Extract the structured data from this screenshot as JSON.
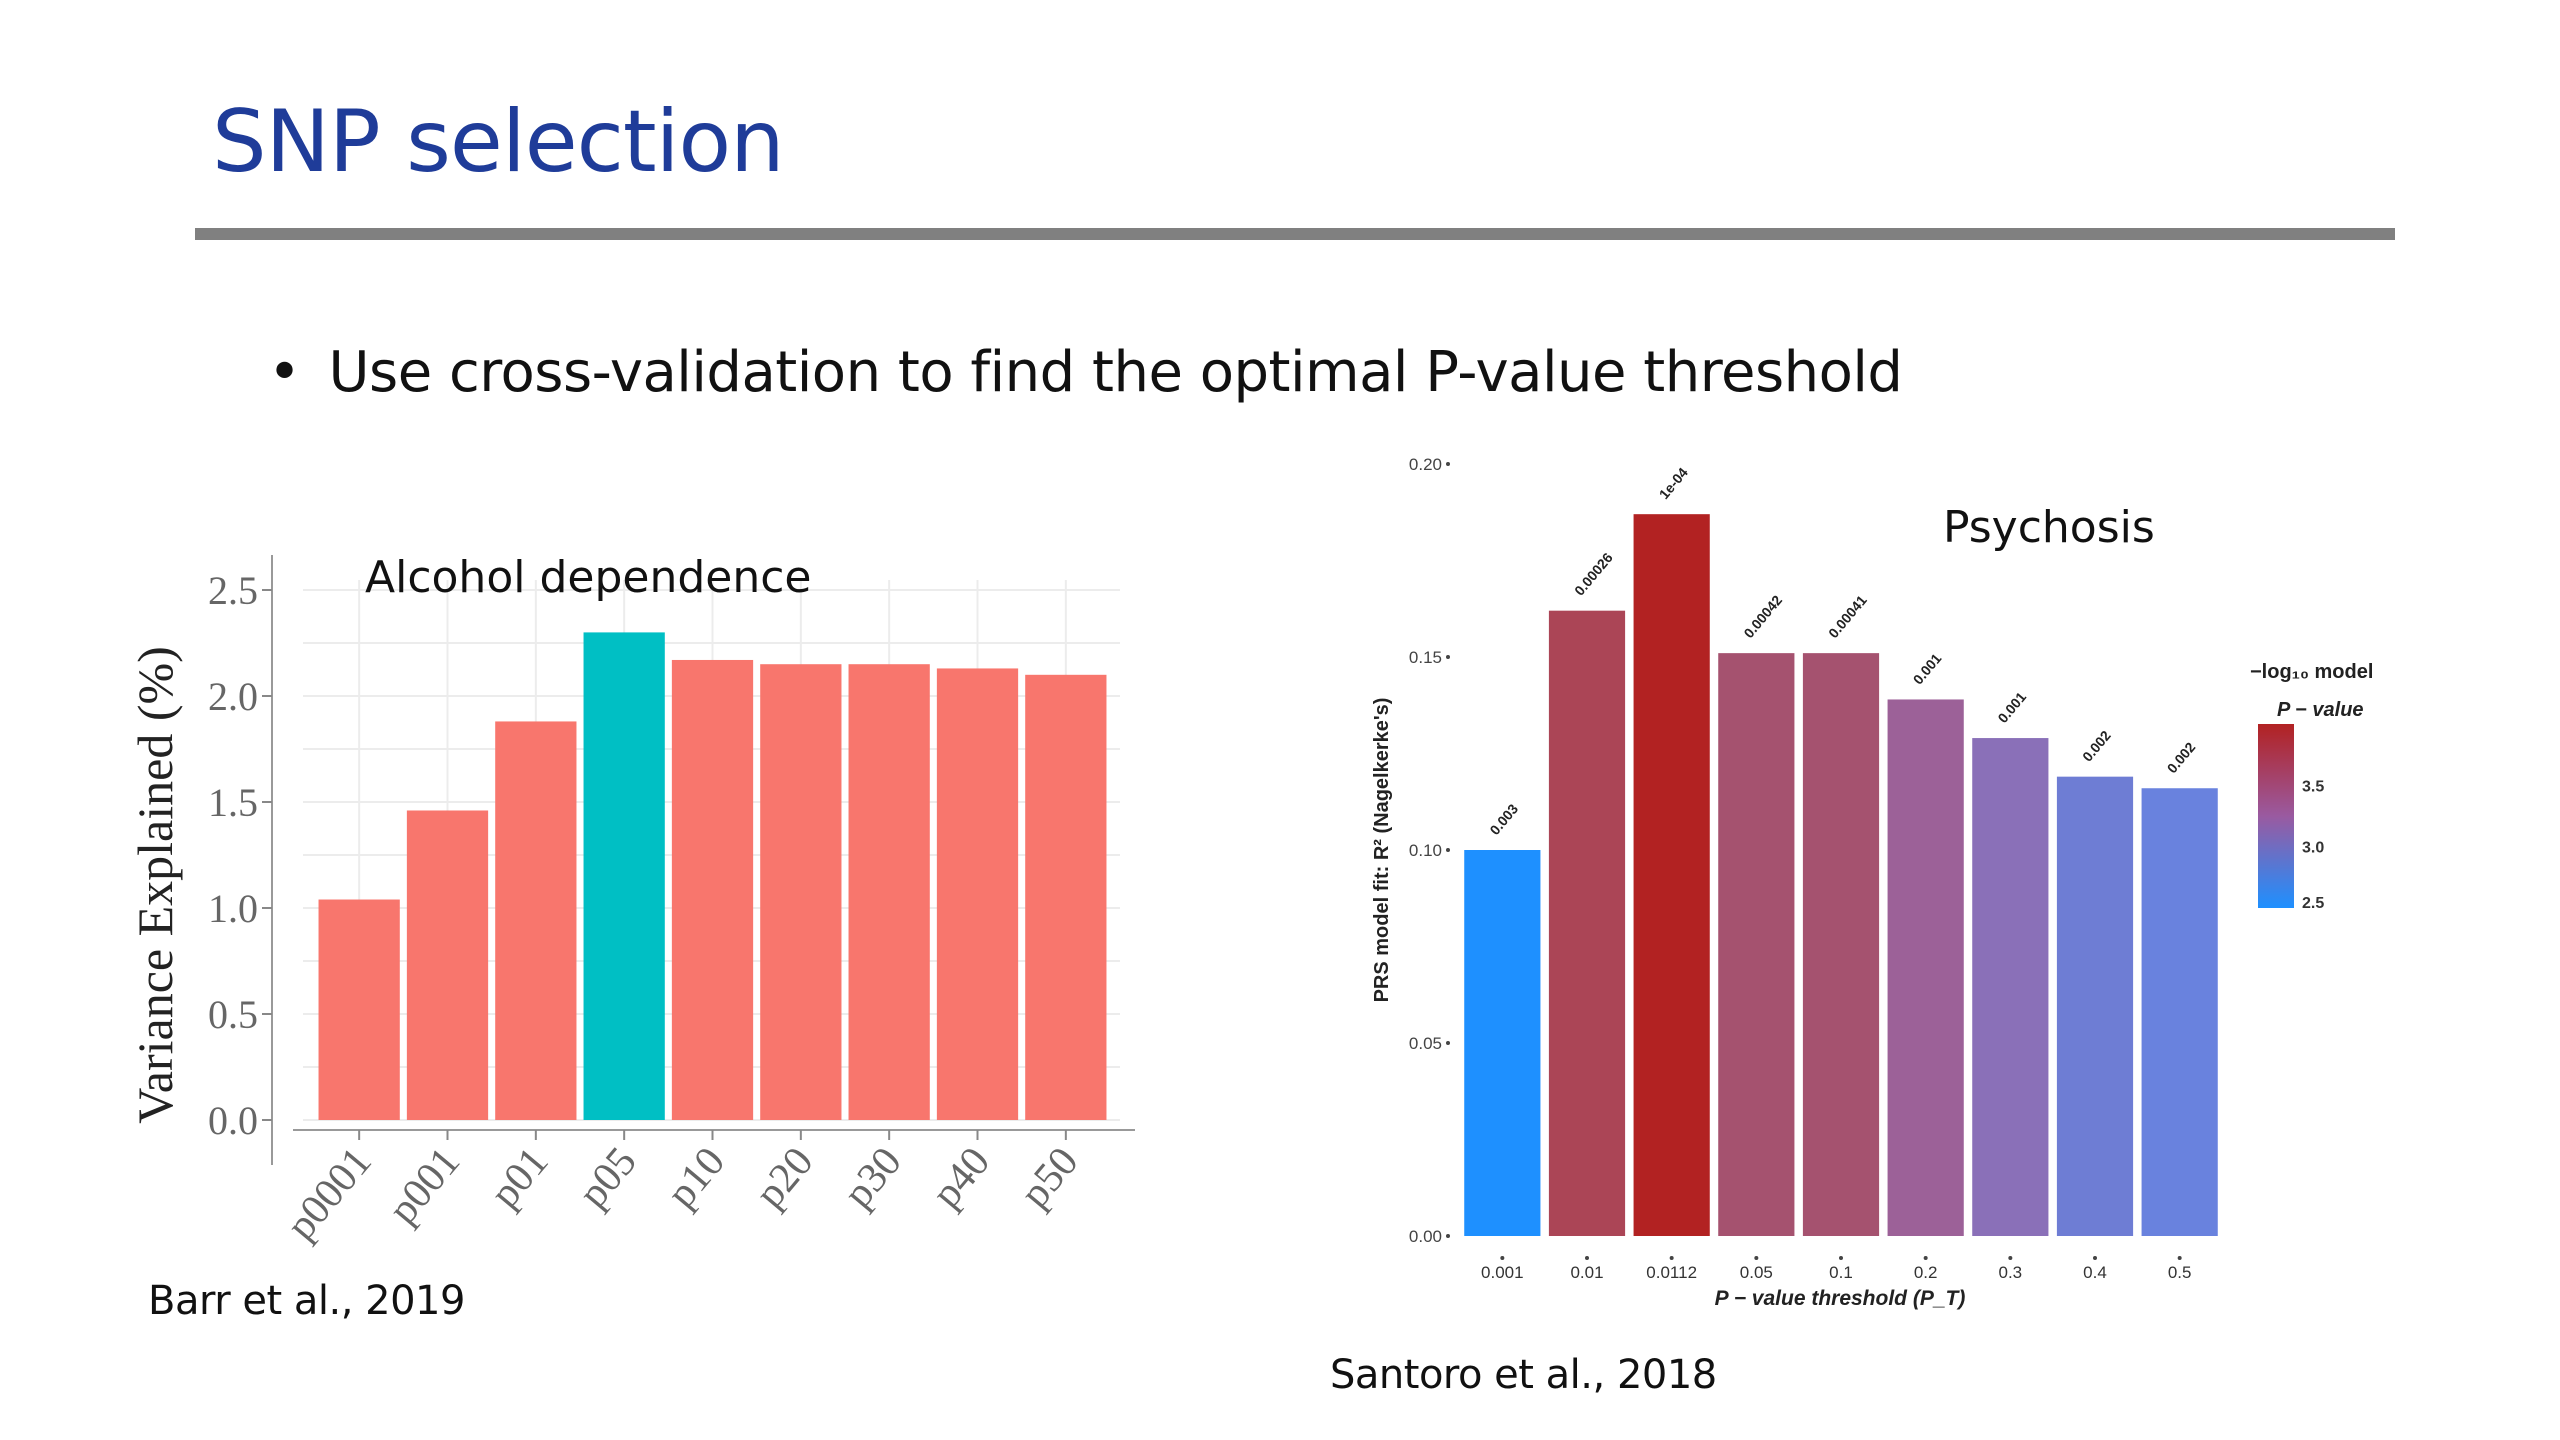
{
  "slide": {
    "title": "SNP selection",
    "bullet": "Use cross-validation to find the optimal P-value threshold",
    "bullet_marker": "•",
    "citations": {
      "left": "Barr et al., 2019",
      "right": "Santoro et al., 2018"
    },
    "colors": {
      "title": "#1f3c99",
      "divider": "#808080"
    }
  },
  "chart_data": [
    {
      "type": "bar",
      "title": "Alcohol dependence",
      "xlabel": "",
      "ylabel": "Variance Explained (%)",
      "categories": [
        "p0001",
        "p001",
        "p01",
        "p05",
        "p10",
        "p20",
        "p30",
        "p40",
        "p50"
      ],
      "values": [
        1.04,
        1.46,
        1.88,
        2.3,
        2.17,
        2.15,
        2.15,
        2.13,
        2.1
      ],
      "highlight_index": 3,
      "colors": {
        "default": "#f8766d",
        "highlight": "#00bfc4"
      },
      "ylim": [
        0,
        2.5
      ],
      "yticks": [
        "0.0",
        "0.5",
        "1.0",
        "1.5",
        "2.0",
        "2.5"
      ],
      "grid": true,
      "legend": "none"
    },
    {
      "type": "bar",
      "title": "Psychosis",
      "xlabel": "P − value threshold (P_T)",
      "ylabel": "PRS model fit:  R² (Nagelkerke's)",
      "categories": [
        "0.001",
        "0.01",
        "0.0112",
        "0.05",
        "0.1",
        "0.2",
        "0.3",
        "0.4",
        "0.5"
      ],
      "values": [
        0.1,
        0.162,
        0.187,
        0.151,
        0.151,
        0.139,
        0.129,
        0.119,
        0.116
      ],
      "bar_labels": [
        "0.003",
        "0.00026",
        "1e-04",
        "0.00042",
        "0.00041",
        "0.001",
        "0.001",
        "0.002",
        "0.002"
      ],
      "bar_colors": [
        "#1e90ff",
        "#ab4556",
        "#b22222",
        "#a5526f",
        "#a5526f",
        "#9c6198",
        "#8a70b8",
        "#6e7dd4",
        "#6982de"
      ],
      "ylim": [
        0,
        0.2
      ],
      "yticks": [
        "0.00",
        "0.05",
        "0.10",
        "0.15",
        "0.20"
      ],
      "grid": false,
      "legend": {
        "placement": "right",
        "title_line1": "−log₁₀ model",
        "title_line2": "P − value",
        "ticks": [
          "3.5",
          "3.0",
          "2.5"
        ],
        "range": [
          2.5,
          4.0
        ],
        "color_low": "#1e90ff",
        "color_high": "#b22222"
      }
    }
  ]
}
